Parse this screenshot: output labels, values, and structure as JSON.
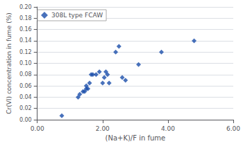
{
  "chart_data": {
    "type": "scatter",
    "xlabel": "(Na+K)/F in fume",
    "ylabel": "Cr(VI) concentration in fume (%)",
    "series": [
      {
        "name": "308L type FCAW",
        "color": "#1A4DAA",
        "marker": "diamond",
        "x": [
          0.75,
          1.25,
          1.3,
          1.4,
          1.45,
          1.5,
          1.5,
          1.55,
          1.6,
          1.65,
          1.7,
          1.8,
          1.9,
          2.0,
          2.05,
          2.1,
          2.15,
          2.2,
          2.4,
          2.5,
          2.6,
          2.7,
          3.1,
          3.8,
          4.8
        ],
        "values": [
          0.007,
          0.04,
          0.045,
          0.05,
          0.05,
          0.055,
          0.06,
          0.055,
          0.065,
          0.08,
          0.08,
          0.08,
          0.085,
          0.065,
          0.075,
          0.085,
          0.08,
          0.065,
          0.12,
          0.13,
          0.075,
          0.07,
          0.098,
          0.12,
          0.14
        ]
      }
    ],
    "xlim": [
      0.0,
      6.0
    ],
    "ylim": [
      0.0,
      0.2
    ],
    "xticks": [
      {
        "value": 0.0,
        "label": "0.00"
      },
      {
        "value": 2.0,
        "label": "2.00"
      },
      {
        "value": 4.0,
        "label": "4.00"
      },
      {
        "value": 6.0,
        "label": "6.00"
      }
    ],
    "yticks": [
      {
        "value": 0.0,
        "label": "0.00"
      },
      0.02,
      0.04,
      0.06,
      0.08,
      {
        "value": 0.1,
        "label": "0.10"
      },
      0.12,
      0.14,
      0.16,
      0.18,
      {
        "value": 0.2,
        "label": "0.20"
      }
    ],
    "grid": "y",
    "legend": "upper left"
  }
}
